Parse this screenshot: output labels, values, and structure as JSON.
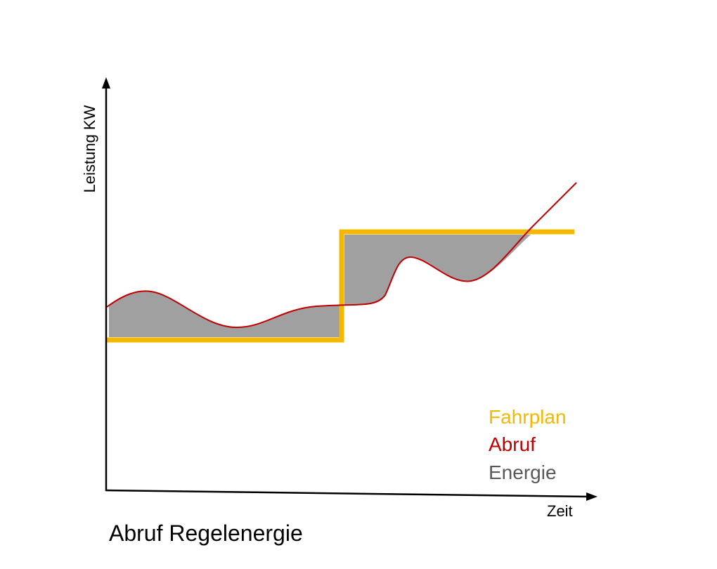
{
  "axis": {
    "y_label": "Leistung KW",
    "x_label": "Zeit"
  },
  "legend": [
    "Fahrplan",
    "Abruf",
    "Energie"
  ],
  "caption": "Abruf Regelenergie"
}
